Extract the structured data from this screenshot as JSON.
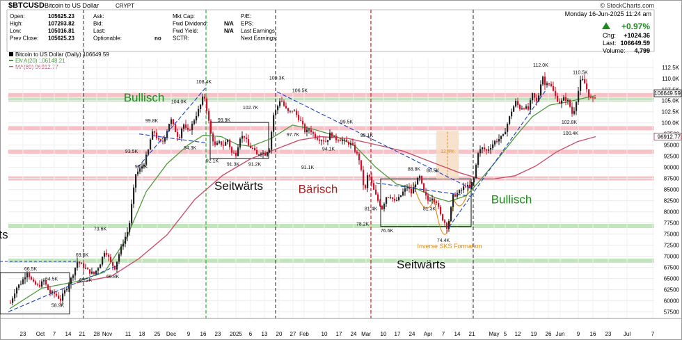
{
  "header": {
    "symbol": "$BTCUSD",
    "name": "Bitcoin to US Dollar",
    "exchange": "CRYPT",
    "watermark": "© StockCharts.com",
    "date": "Monday  16-Jun-2025  11:24 am",
    "change_pct": "+0.97%",
    "chg_label": "Chg:",
    "chg_value": "+1024.36",
    "last_label": "Last:",
    "last_value": "106649.59",
    "volume_label": "Volume:",
    "volume_value": "4,799"
  },
  "quote_col1": [
    {
      "label": "Open:",
      "value": "105625.23"
    },
    {
      "label": "High:",
      "value": "107293.82"
    },
    {
      "label": "Low:",
      "value": "105016.81"
    },
    {
      "label": "Prev Close:",
      "value": "105625.23"
    }
  ],
  "quote_col2": [
    {
      "label": "Ask:",
      "value": ""
    },
    {
      "label": "Bid:",
      "value": ""
    },
    {
      "label": "Last:",
      "value": ""
    },
    {
      "label": "Optionable:",
      "value": "no"
    }
  ],
  "quote_col3": [
    {
      "label": "Mkt Cap:",
      "value": ""
    },
    {
      "label": "Fwd Dividend:",
      "value": "N/A"
    },
    {
      "label": "Fwd Yield:",
      "value": "N/A"
    },
    {
      "label": "SCTR:",
      "value": ""
    }
  ],
  "quote_col4": [
    {
      "label": "P/E:",
      "value": ""
    },
    {
      "label": "EPS:",
      "value": ""
    },
    {
      "label": "Last Earnings:",
      "value": ""
    },
    {
      "label": "Next Earnings:",
      "value": ""
    }
  ],
  "legend": {
    "price": "Bitcoin to US Dollar (Daily) 106649.59",
    "ema": "EMA(20) 106148.21",
    "ma": "MA(80) 96912.77"
  },
  "price_tags": {
    "last": "106649.59",
    "ma": "96912.77"
  },
  "colors": {
    "up": "#222222",
    "down": "#d0122a",
    "ema": "#4f9a3d",
    "ma": "#c8506a",
    "trend": "#1a3fbf",
    "support_red": "#f4b7bd",
    "support_green": "#b9e0b2",
    "bullisch": "#1e8a1e",
    "baerisch": "#b01f1f",
    "sks": "#e08a1e"
  },
  "chart_data": {
    "type": "candlestick",
    "ylim": [
      56000,
      114500
    ],
    "y_ticks": [
      57500,
      60000,
      62500,
      65000,
      67500,
      70000,
      72500,
      75000,
      77500,
      80000,
      82500,
      85000,
      87500,
      90000,
      92500,
      95000,
      97500,
      100000,
      102500,
      105000,
      107500,
      110000,
      112500
    ],
    "y_tick_labels": [
      "57500",
      "60000",
      "62500",
      "65000",
      "67500",
      "70000",
      "72500",
      "75000",
      "77500",
      "80000",
      "82500",
      "85000",
      "87500",
      "90000",
      "92500",
      "95000",
      "97500",
      "100.0K",
      "102.5K",
      "105.0K",
      "107.5K",
      "110.0K",
      "112.5K"
    ],
    "x_ticks": [
      {
        "label": "23",
        "x": 33
      },
      {
        "label": "Oct",
        "x": 58
      },
      {
        "label": "7",
        "x": 78
      },
      {
        "label": "14",
        "x": 98
      },
      {
        "label": "21",
        "x": 118
      },
      {
        "label": "28",
        "x": 139
      },
      {
        "label": "Nov",
        "x": 154
      },
      {
        "label": "11",
        "x": 184
      },
      {
        "label": "18",
        "x": 204
      },
      {
        "label": "25",
        "x": 226
      },
      {
        "label": "Dec",
        "x": 246
      },
      {
        "label": "9",
        "x": 271
      },
      {
        "label": "16",
        "x": 292
      },
      {
        "label": "23",
        "x": 313
      },
      {
        "label": "2025",
        "x": 339
      },
      {
        "label": "6",
        "x": 360
      },
      {
        "label": "13",
        "x": 380
      },
      {
        "label": "20",
        "x": 401
      },
      {
        "label": "27",
        "x": 421
      },
      {
        "label": "Feb",
        "x": 437
      },
      {
        "label": "10",
        "x": 466
      },
      {
        "label": "17",
        "x": 487
      },
      {
        "label": "24",
        "x": 508
      },
      {
        "label": "Mar",
        "x": 526
      },
      {
        "label": "10",
        "x": 551
      },
      {
        "label": "17",
        "x": 571
      },
      {
        "label": "24",
        "x": 592
      },
      {
        "label": "Apr",
        "x": 615
      },
      {
        "label": "7",
        "x": 637
      },
      {
        "label": "14",
        "x": 657
      },
      {
        "label": "21",
        "x": 678
      },
      {
        "label": "May",
        "x": 710
      },
      {
        "label": "5",
        "x": 726
      },
      {
        "label": "12",
        "x": 744
      },
      {
        "label": "19",
        "x": 767
      },
      {
        "label": "26",
        "x": 788
      },
      {
        "label": "Jun",
        "x": 805
      },
      {
        "label": "9",
        "x": 831
      },
      {
        "label": "16",
        "x": 852
      },
      {
        "label": "23",
        "x": 874
      },
      {
        "label": "Jul",
        "x": 901
      },
      {
        "label": "7",
        "x": 938
      }
    ],
    "price_path": [
      [
        14,
        59500
      ],
      [
        22,
        62800
      ],
      [
        30,
        64200
      ],
      [
        38,
        66500
      ],
      [
        46,
        64000
      ],
      [
        54,
        63200
      ],
      [
        62,
        64500
      ],
      [
        70,
        61800
      ],
      [
        78,
        61500
      ],
      [
        86,
        60200
      ],
      [
        94,
        62800
      ],
      [
        102,
        65200
      ],
      [
        110,
        68800
      ],
      [
        118,
        67800
      ],
      [
        126,
        66600
      ],
      [
        134,
        66000
      ],
      [
        142,
        68000
      ],
      [
        150,
        71500
      ],
      [
        158,
        68500
      ],
      [
        164,
        67400
      ],
      [
        170,
        70500
      ],
      [
        178,
        74000
      ],
      [
        184,
        76200
      ],
      [
        188,
        81500
      ],
      [
        194,
        88500
      ],
      [
        200,
        89500
      ],
      [
        206,
        91000
      ],
      [
        212,
        93800
      ],
      [
        216,
        97000
      ],
      [
        220,
        98300
      ],
      [
        226,
        96000
      ],
      [
        232,
        95500
      ],
      [
        238,
        97800
      ],
      [
        244,
        101000
      ],
      [
        250,
        98500
      ],
      [
        256,
        96500
      ],
      [
        262,
        100000
      ],
      [
        268,
        97800
      ],
      [
        274,
        99200
      ],
      [
        280,
        101500
      ],
      [
        286,
        103500
      ],
      [
        292,
        106500
      ],
      [
        296,
        103000
      ],
      [
        302,
        97500
      ],
      [
        308,
        94800
      ],
      [
        314,
        95500
      ],
      [
        320,
        95000
      ],
      [
        326,
        96200
      ],
      [
        332,
        93200
      ],
      [
        338,
        93000
      ],
      [
        344,
        96800
      ],
      [
        350,
        97000
      ],
      [
        356,
        94800
      ],
      [
        362,
        94200
      ],
      [
        368,
        92700
      ],
      [
        374,
        93500
      ],
      [
        380,
        93000
      ],
      [
        386,
        94300
      ],
      [
        392,
        101800
      ],
      [
        396,
        103000
      ],
      [
        402,
        105500
      ],
      [
        408,
        103500
      ],
      [
        414,
        102200
      ],
      [
        420,
        103000
      ],
      [
        426,
        101600
      ],
      [
        432,
        100000
      ],
      [
        438,
        97800
      ],
      [
        444,
        98700
      ],
      [
        450,
        97200
      ],
      [
        456,
        96500
      ],
      [
        462,
        96200
      ],
      [
        468,
        95800
      ],
      [
        474,
        97800
      ],
      [
        480,
        96300
      ],
      [
        486,
        96400
      ],
      [
        492,
        96000
      ],
      [
        498,
        95500
      ],
      [
        504,
        95200
      ],
      [
        510,
        93500
      ],
      [
        516,
        91500
      ],
      [
        520,
        86500
      ],
      [
        524,
        85100
      ],
      [
        528,
        89000
      ],
      [
        532,
        86700
      ],
      [
        536,
        84800
      ],
      [
        542,
        82500
      ],
      [
        548,
        80800
      ],
      [
        554,
        83400
      ],
      [
        560,
        83600
      ],
      [
        566,
        82200
      ],
      [
        572,
        83000
      ],
      [
        578,
        84400
      ],
      [
        584,
        85600
      ],
      [
        590,
        84200
      ],
      [
        596,
        86500
      ],
      [
        602,
        87800
      ],
      [
        608,
        84200
      ],
      [
        614,
        82500
      ],
      [
        620,
        83300
      ],
      [
        626,
        82300
      ],
      [
        632,
        79200
      ],
      [
        638,
        77600
      ],
      [
        642,
        76300
      ],
      [
        646,
        79800
      ],
      [
        650,
        83500
      ],
      [
        656,
        84100
      ],
      [
        662,
        84900
      ],
      [
        668,
        86000
      ],
      [
        674,
        85300
      ],
      [
        680,
        87500
      ],
      [
        686,
        93500
      ],
      [
        692,
        94300
      ],
      [
        698,
        93700
      ],
      [
        704,
        94700
      ],
      [
        710,
        95800
      ],
      [
        716,
        96400
      ],
      [
        722,
        97000
      ],
      [
        728,
        99800
      ],
      [
        734,
        102700
      ],
      [
        740,
        104700
      ],
      [
        746,
        103300
      ],
      [
        752,
        103600
      ],
      [
        758,
        103000
      ],
      [
        764,
        106300
      ],
      [
        770,
        104700
      ],
      [
        774,
        106800
      ],
      [
        778,
        111200
      ],
      [
        782,
        108500
      ],
      [
        786,
        109600
      ],
      [
        792,
        107800
      ],
      [
        798,
        105600
      ],
      [
        804,
        104400
      ],
      [
        810,
        105600
      ],
      [
        816,
        104700
      ],
      [
        822,
        101600
      ],
      [
        828,
        105800
      ],
      [
        834,
        110000
      ],
      [
        840,
        108600
      ],
      [
        846,
        105600
      ],
      [
        852,
        105200
      ],
      [
        856,
        106650
      ]
    ],
    "ema_path": [
      [
        14,
        58200
      ],
      [
        60,
        62800
      ],
      [
        110,
        64300
      ],
      [
        150,
        66400
      ],
      [
        180,
        73500
      ],
      [
        210,
        84500
      ],
      [
        240,
        90800
      ],
      [
        270,
        95000
      ],
      [
        292,
        97200
      ],
      [
        318,
        96900
      ],
      [
        340,
        95200
      ],
      [
        360,
        94700
      ],
      [
        390,
        96500
      ],
      [
        420,
        99500
      ],
      [
        450,
        98600
      ],
      [
        480,
        97200
      ],
      [
        510,
        94800
      ],
      [
        540,
        90000
      ],
      [
        570,
        86200
      ],
      [
        600,
        85100
      ],
      [
        625,
        83200
      ],
      [
        645,
        82300
      ],
      [
        670,
        83600
      ],
      [
        690,
        87100
      ],
      [
        715,
        91800
      ],
      [
        740,
        96800
      ],
      [
        765,
        101400
      ],
      [
        790,
        104000
      ],
      [
        815,
        104700
      ],
      [
        840,
        105600
      ],
      [
        856,
        106150
      ]
    ],
    "ma_path": [
      [
        110,
        64000
      ],
      [
        160,
        65500
      ],
      [
        200,
        69500
      ],
      [
        240,
        74800
      ],
      [
        280,
        82800
      ],
      [
        320,
        88200
      ],
      [
        360,
        91900
      ],
      [
        400,
        94300
      ],
      [
        430,
        96100
      ],
      [
        460,
        96900
      ],
      [
        500,
        96500
      ],
      [
        540,
        95100
      ],
      [
        580,
        93600
      ],
      [
        620,
        91200
      ],
      [
        660,
        88800
      ],
      [
        690,
        87400
      ],
      [
        710,
        87400
      ],
      [
        740,
        88100
      ],
      [
        770,
        90300
      ],
      [
        800,
        93500
      ],
      [
        830,
        95800
      ],
      [
        856,
        96900
      ]
    ],
    "vlines_black": [
      120,
      296,
      396,
      680
    ],
    "vlines_green": [
      296
    ],
    "vlines_red": [
      533
    ],
    "support_bands": [
      {
        "y": 106250,
        "color": "support_red"
      },
      {
        "y": 105200,
        "color": "support_green"
      },
      {
        "y": 98800,
        "color": "support_red"
      },
      {
        "y": 93500,
        "color": "support_red"
      },
      {
        "y": 87500,
        "color": "support_red"
      },
      {
        "y": 76800,
        "color": "support_green"
      },
      {
        "y": 69000,
        "color": "support_green"
      }
    ],
    "labels": [
      {
        "text": "112.0K",
        "x": 777,
        "y": 112600
      },
      {
        "text": "110.5K",
        "x": 834,
        "y": 111000
      },
      {
        "text": "108.4K",
        "x": 293,
        "y": 108900
      },
      {
        "text": "109.3K",
        "x": 398,
        "y": 109700
      },
      {
        "text": "106.5K",
        "x": 431,
        "y": 106900
      },
      {
        "text": "104.0K",
        "x": 257,
        "y": 104400
      },
      {
        "text": "102.7K",
        "x": 360,
        "y": 103100
      },
      {
        "text": "102.8K",
        "x": 818,
        "y": 99800
      },
      {
        "text": "100.4K",
        "x": 820,
        "y": 97300
      },
      {
        "text": "99.8K",
        "x": 218,
        "y": 100100
      },
      {
        "text": "99.9K",
        "x": 322,
        "y": 100300
      },
      {
        "text": "99.5K",
        "x": 498,
        "y": 99900
      },
      {
        "text": "97.7K",
        "x": 421,
        "y": 97000
      },
      {
        "text": "95.1K",
        "x": 527,
        "y": 96800
      },
      {
        "text": "94.1K",
        "x": 472,
        "y": 93800
      },
      {
        "text": "94.3K",
        "x": 273,
        "y": 94000
      },
      {
        "text": "93.5K",
        "x": 189,
        "y": 93200
      },
      {
        "text": "92.1K",
        "x": 305,
        "y": 91100
      },
      {
        "text": "91.3K",
        "x": 335,
        "y": 90300
      },
      {
        "text": "91.2K",
        "x": 366,
        "y": 90300
      },
      {
        "text": "91.1K",
        "x": 442,
        "y": 89600
      },
      {
        "text": "90.7K",
        "x": 203,
        "y": 89800
      },
      {
        "text": "88.8K",
        "x": 595,
        "y": 89200
      },
      {
        "text": "88.5K",
        "x": 622,
        "y": 88900
      },
      {
        "text": "81.4K",
        "x": 533,
        "y": 80300
      },
      {
        "text": "81.3K",
        "x": 617,
        "y": 80300
      },
      {
        "text": "78.2K",
        "x": 521,
        "y": 76900
      },
      {
        "text": "76.6K",
        "x": 556,
        "y": 75400
      },
      {
        "text": "74.4K",
        "x": 637,
        "y": 73200
      },
      {
        "text": "73.6K",
        "x": 144,
        "y": 75800
      },
      {
        "text": "69.5K",
        "x": 118,
        "y": 69900
      },
      {
        "text": "66.5K",
        "x": 44,
        "y": 66800
      },
      {
        "text": "64.5K",
        "x": 74,
        "y": 64500
      },
      {
        "text": "65.2K",
        "x": 123,
        "y": 64300
      },
      {
        "text": "66.8K",
        "x": 162,
        "y": 65100
      },
      {
        "text": "58.9K",
        "x": 83,
        "y": 58600
      },
      {
        "text": "12.4%",
        "x": 643,
        "y": 93200
      }
    ],
    "annotations": [
      {
        "text": "Bullisch",
        "x": 207,
        "y": 104800,
        "color": "bullisch",
        "size": 17
      },
      {
        "text": "Seitwärts",
        "x": 343,
        "y": 84900,
        "color": "#111111",
        "size": 17
      },
      {
        "text": "Bärisch",
        "x": 457,
        "y": 84200,
        "color": "baerisch",
        "size": 17
      },
      {
        "text": "Bullisch",
        "x": 735,
        "y": 81900,
        "color": "bullisch",
        "size": 17
      },
      {
        "text": "Seitwärts",
        "x": 605,
        "y": 67300,
        "color": "#111111",
        "size": 17
      },
      {
        "text": "ts",
        "x": 5,
        "y": 74000,
        "color": "#111111",
        "size": 17
      },
      {
        "text": "Inverse SKS Formation",
        "x": 646,
        "y": 71800,
        "color": "sks",
        "size": 9
      }
    ]
  }
}
